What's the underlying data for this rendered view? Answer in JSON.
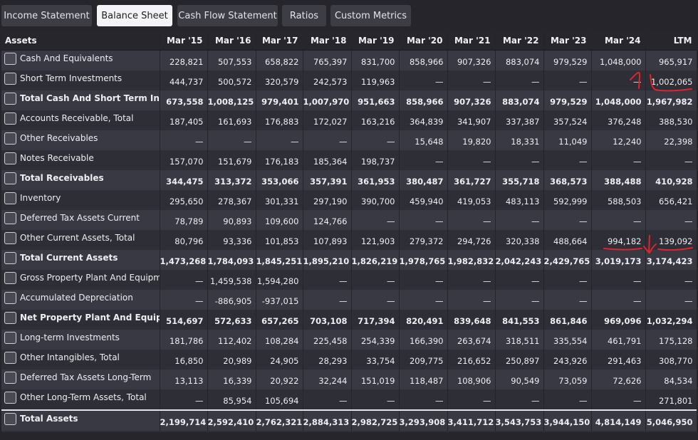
{
  "tabs": [
    {
      "label": "Income Statement",
      "active": false
    },
    {
      "label": "Balance Sheet",
      "active": true
    },
    {
      "label": "Cash Flow Statement",
      "active": false
    },
    {
      "label": "Ratios",
      "active": false
    },
    {
      "label": "Custom Metrics",
      "active": false
    }
  ],
  "table": {
    "header_label": "Assets",
    "columns": [
      "Mar '15",
      "Mar '16",
      "Mar '17",
      "Mar '18",
      "Mar '19",
      "Mar '20",
      "Mar '21",
      "Mar '22",
      "Mar '23",
      "Mar '24",
      "LTM"
    ],
    "rows": [
      {
        "label": "Cash And Equivalents",
        "total": false,
        "values": [
          "228,821",
          "507,553",
          "658,822",
          "765,397",
          "831,700",
          "858,966",
          "907,326",
          "883,074",
          "979,529",
          "1,048,000",
          "965,917"
        ]
      },
      {
        "label": "Short Term Investments",
        "total": false,
        "values": [
          "444,737",
          "500,572",
          "320,579",
          "242,573",
          "119,963",
          "—",
          "—",
          "—",
          "—",
          "—",
          "1,002,065"
        ]
      },
      {
        "label": "Total Cash And Short Term Investments",
        "total": true,
        "values": [
          "673,558",
          "1,008,125",
          "979,401",
          "1,007,970",
          "951,663",
          "858,966",
          "907,326",
          "883,074",
          "979,529",
          "1,048,000",
          "1,967,982"
        ]
      },
      {
        "label": "Accounts Receivable, Total",
        "total": false,
        "values": [
          "187,405",
          "161,693",
          "176,883",
          "172,027",
          "163,216",
          "364,839",
          "341,907",
          "337,387",
          "357,524",
          "376,248",
          "388,530"
        ]
      },
      {
        "label": "Other Receivables",
        "total": false,
        "values": [
          "—",
          "—",
          "—",
          "—",
          "—",
          "15,648",
          "19,820",
          "18,331",
          "11,049",
          "12,240",
          "22,398"
        ]
      },
      {
        "label": "Notes Receivable",
        "total": false,
        "values": [
          "157,070",
          "151,679",
          "176,183",
          "185,364",
          "198,737",
          "—",
          "—",
          "—",
          "—",
          "—",
          "—"
        ]
      },
      {
        "label": "Total Receivables",
        "total": true,
        "values": [
          "344,475",
          "313,372",
          "353,066",
          "357,391",
          "361,953",
          "380,487",
          "361,727",
          "355,718",
          "368,573",
          "388,488",
          "410,928"
        ]
      },
      {
        "label": "Inventory",
        "total": false,
        "values": [
          "295,650",
          "278,367",
          "301,331",
          "297,190",
          "390,700",
          "459,940",
          "419,053",
          "483,113",
          "592,999",
          "588,503",
          "656,421"
        ]
      },
      {
        "label": "Deferred Tax Assets Current",
        "total": false,
        "values": [
          "78,789",
          "90,893",
          "109,600",
          "124,766",
          "—",
          "—",
          "—",
          "—",
          "—",
          "—",
          "—"
        ]
      },
      {
        "label": "Other Current Assets, Total",
        "total": false,
        "values": [
          "80,796",
          "93,336",
          "101,853",
          "107,893",
          "121,903",
          "279,372",
          "294,726",
          "320,338",
          "488,664",
          "994,182",
          "139,092"
        ]
      },
      {
        "label": "Total Current Assets",
        "total": true,
        "values": [
          "1,473,268",
          "1,784,093",
          "1,845,251",
          "1,895,210",
          "1,826,219",
          "1,978,765",
          "1,982,832",
          "2,042,243",
          "2,429,765",
          "3,019,173",
          "3,174,423"
        ]
      },
      {
        "label": "Gross Property Plant And Equipment",
        "total": false,
        "values": [
          "—",
          "1,459,538",
          "1,594,280",
          "—",
          "—",
          "—",
          "—",
          "—",
          "—",
          "—",
          "—"
        ]
      },
      {
        "label": "Accumulated Depreciation",
        "total": false,
        "values": [
          "—",
          "-886,905",
          "-937,015",
          "—",
          "—",
          "—",
          "—",
          "—",
          "—",
          "—",
          "—"
        ]
      },
      {
        "label": "Net Property Plant And Equipment",
        "total": true,
        "values": [
          "514,697",
          "572,633",
          "657,265",
          "703,108",
          "717,394",
          "820,491",
          "839,648",
          "841,553",
          "861,846",
          "969,096",
          "1,032,294"
        ]
      },
      {
        "label": "Long-term Investments",
        "total": false,
        "values": [
          "181,786",
          "112,402",
          "108,284",
          "225,458",
          "254,339",
          "166,390",
          "263,674",
          "318,511",
          "335,554",
          "461,791",
          "175,128"
        ]
      },
      {
        "label": "Other Intangibles, Total",
        "total": false,
        "values": [
          "16,850",
          "20,989",
          "24,905",
          "28,293",
          "33,754",
          "209,775",
          "216,652",
          "250,897",
          "243,926",
          "291,463",
          "308,770"
        ]
      },
      {
        "label": "Deferred Tax Assets Long-Term",
        "total": false,
        "values": [
          "13,113",
          "16,339",
          "20,922",
          "32,244",
          "151,019",
          "118,487",
          "108,906",
          "90,549",
          "73,059",
          "72,626",
          "84,534"
        ]
      },
      {
        "label": "Other Long-Term Assets, Total",
        "total": false,
        "values": [
          "—",
          "85,954",
          "105,694",
          "—",
          "—",
          "—",
          "—",
          "—",
          "—",
          "—",
          "271,801"
        ]
      },
      {
        "label": "Total Assets",
        "total": true,
        "values": [
          "2,199,714",
          "2,592,410",
          "2,762,321",
          "2,884,313",
          "2,982,725",
          "3,293,908",
          "3,411,712",
          "3,543,753",
          "3,944,150",
          "4,814,149",
          "5,046,950"
        ]
      }
    ]
  },
  "annotation_color": "#e0242c"
}
